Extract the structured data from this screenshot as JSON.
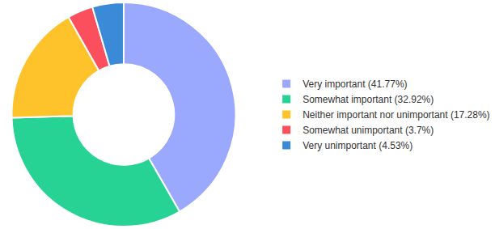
{
  "chart_data": {
    "type": "pie",
    "categories": [
      "Very important (41.77%)",
      "Somewhat important (32.92%)",
      "Neither important nor unimportant (17.28%)",
      "Somewhat unimportant (3.7%)",
      "Very unimportant (4.53%)"
    ],
    "values": [
      41.77,
      32.92,
      17.28,
      3.7,
      4.53
    ],
    "colors": [
      "#9aa8fd",
      "#26d394",
      "#fec32a",
      "#fc4f5d",
      "#3a8ad8"
    ],
    "legend": "right"
  }
}
